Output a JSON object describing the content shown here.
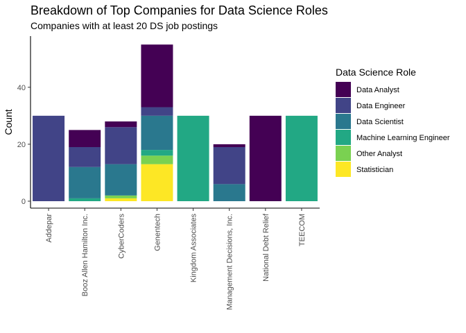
{
  "chart_data": {
    "type": "bar",
    "stacked": true,
    "title": "Breakdown of Top Companies for Data Science Roles",
    "subtitle": "Companies with at least 20 DS job postings",
    "xlabel": "",
    "ylabel": "Count",
    "ylim": [
      0,
      57
    ],
    "yticks": [
      0,
      20,
      40
    ],
    "grid": false,
    "legend_title": "Data Science Role",
    "legend_position": "right",
    "categories": [
      "Addepar",
      "Booz Allen Hamilton Inc.",
      "CyberCoders",
      "Genentech",
      "Kingdom Associates",
      "Management Decisions, Inc.",
      "National Debt Relief",
      "TEECOM"
    ],
    "series": [
      {
        "name": "Statistician",
        "color": "#FDE725",
        "values": [
          0,
          0,
          1,
          13,
          0,
          0,
          0,
          0
        ]
      },
      {
        "name": "Other Analyst",
        "color": "#7AD151",
        "values": [
          0,
          0,
          1,
          3,
          0,
          0,
          0,
          0
        ]
      },
      {
        "name": "Machine Learning Engineer",
        "color": "#22A884",
        "values": [
          0,
          1,
          0,
          2,
          30,
          0,
          0,
          30
        ]
      },
      {
        "name": "Data Scientist",
        "color": "#2A788E",
        "values": [
          0,
          11,
          11,
          12,
          0,
          6,
          0,
          0
        ]
      },
      {
        "name": "Data Engineer",
        "color": "#414487",
        "values": [
          30,
          7,
          13,
          3,
          0,
          13,
          0,
          0
        ]
      },
      {
        "name": "Data Analyst",
        "color": "#440154",
        "values": [
          0,
          6,
          2,
          22,
          0,
          1,
          30,
          0
        ]
      }
    ],
    "legend_order": [
      "Data Analyst",
      "Data Engineer",
      "Data Scientist",
      "Machine Learning Engineer",
      "Other Analyst",
      "Statistician"
    ]
  }
}
